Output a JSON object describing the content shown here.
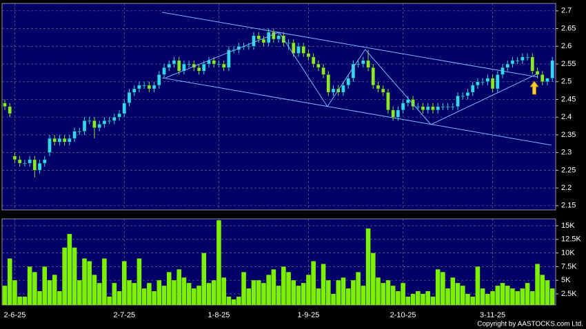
{
  "chart_data": {
    "type": "candlestick",
    "credit": "Copyright by AASTOCKS.com Ltd.",
    "categories": [
      null,
      null,
      "2-6-25",
      null,
      null,
      null,
      null,
      null,
      null,
      null,
      null,
      null,
      null,
      null,
      null,
      null,
      null,
      null,
      null,
      null,
      null,
      null,
      null,
      null,
      "2-7-25",
      null,
      null,
      null,
      null,
      null,
      null,
      null,
      null,
      null,
      null,
      null,
      null,
      null,
      null,
      null,
      null,
      null,
      null,
      "1-8-25",
      null,
      null,
      null,
      null,
      null,
      null,
      null,
      null,
      null,
      null,
      null,
      null,
      null,
      null,
      null,
      null,
      null,
      "1-9-25",
      null,
      null,
      null,
      null,
      null,
      null,
      null,
      null,
      null,
      null,
      null,
      null,
      null,
      null,
      null,
      null,
      null,
      null,
      "2-10-25",
      null,
      null,
      null,
      null,
      null,
      null,
      null,
      null,
      null,
      null,
      null,
      null,
      null,
      null,
      null,
      null,
      null,
      "3-11-25",
      null,
      null,
      null,
      null,
      null,
      null,
      null,
      null,
      null,
      null,
      null,
      null
    ],
    "open": [
      2.44,
      2.43,
      2.29,
      2.28,
      2.27,
      2.27,
      2.28,
      2.25,
      2.27,
      2.3,
      2.34,
      2.33,
      2.34,
      2.33,
      2.34,
      2.36,
      2.36,
      2.39,
      2.39,
      2.37,
      2.38,
      2.39,
      2.39,
      2.4,
      2.41,
      2.44,
      2.47,
      2.48,
      2.49,
      2.49,
      2.48,
      2.49,
      2.52,
      2.54,
      2.55,
      2.56,
      2.53,
      2.55,
      2.55,
      2.54,
      2.53,
      2.55,
      2.56,
      2.55,
      2.55,
      2.54,
      2.59,
      2.59,
      2.6,
      2.6,
      2.6,
      2.63,
      2.62,
      2.61,
      2.64,
      2.62,
      2.63,
      2.61,
      2.61,
      2.58,
      2.6,
      2.58,
      2.57,
      2.55,
      2.54,
      2.52,
      2.47,
      2.48,
      2.47,
      2.49,
      2.51,
      2.55,
      2.55,
      2.56,
      2.54,
      2.49,
      2.48,
      2.47,
      2.42,
      2.4,
      2.42,
      2.44,
      2.45,
      2.43,
      2.43,
      2.42,
      2.43,
      2.42,
      2.43,
      2.43,
      2.43,
      2.43,
      2.46,
      2.46,
      2.47,
      2.49,
      2.5,
      2.5,
      2.51,
      2.48,
      2.52,
      2.54,
      2.55,
      2.56,
      2.56,
      2.57,
      2.57,
      2.53,
      2.52,
      2.5,
      2.51
    ],
    "high": [
      2.45,
      2.44,
      2.3,
      2.29,
      2.28,
      2.29,
      2.29,
      2.28,
      2.29,
      2.35,
      2.35,
      2.35,
      2.35,
      2.35,
      2.37,
      2.37,
      2.4,
      2.4,
      2.4,
      2.39,
      2.4,
      2.4,
      2.41,
      2.42,
      2.45,
      2.48,
      2.49,
      2.5,
      2.5,
      2.5,
      2.5,
      2.53,
      2.55,
      2.56,
      2.57,
      2.57,
      2.56,
      2.56,
      2.56,
      2.55,
      2.56,
      2.57,
      2.57,
      2.56,
      2.56,
      2.6,
      2.6,
      2.61,
      2.61,
      2.61,
      2.64,
      2.64,
      2.63,
      2.65,
      2.65,
      2.64,
      2.64,
      2.62,
      2.62,
      2.61,
      2.61,
      2.59,
      2.58,
      2.56,
      2.55,
      2.53,
      2.49,
      2.49,
      2.5,
      2.52,
      2.56,
      2.56,
      2.57,
      2.59,
      2.55,
      2.5,
      2.49,
      2.48,
      2.43,
      2.43,
      2.45,
      2.46,
      2.46,
      2.44,
      2.44,
      2.44,
      2.44,
      2.44,
      2.44,
      2.44,
      2.44,
      2.47,
      2.47,
      2.48,
      2.5,
      2.51,
      2.51,
      2.52,
      2.52,
      2.53,
      2.55,
      2.56,
      2.57,
      2.57,
      2.58,
      2.58,
      2.58,
      2.54,
      2.53,
      2.51,
      2.57
    ],
    "low": [
      2.42,
      2.4,
      2.27,
      2.26,
      2.26,
      2.26,
      2.23,
      2.24,
      2.26,
      2.29,
      2.32,
      2.32,
      2.32,
      2.32,
      2.33,
      2.35,
      2.35,
      2.38,
      2.34,
      2.36,
      2.37,
      2.38,
      2.38,
      2.39,
      2.4,
      2.43,
      2.46,
      2.47,
      2.48,
      2.47,
      2.47,
      2.48,
      2.51,
      2.53,
      2.54,
      2.52,
      2.52,
      2.54,
      2.53,
      2.52,
      2.52,
      2.54,
      2.54,
      2.54,
      2.53,
      2.53,
      2.58,
      2.58,
      2.59,
      2.59,
      2.59,
      2.61,
      2.6,
      2.6,
      2.61,
      2.61,
      2.6,
      2.59,
      2.57,
      2.57,
      2.57,
      2.56,
      2.54,
      2.53,
      2.51,
      2.46,
      2.46,
      2.46,
      2.46,
      2.48,
      2.5,
      2.54,
      2.54,
      2.53,
      2.48,
      2.47,
      2.46,
      2.41,
      2.39,
      2.39,
      2.41,
      2.43,
      2.42,
      2.42,
      2.41,
      2.41,
      2.41,
      2.41,
      2.42,
      2.42,
      2.42,
      2.42,
      2.45,
      2.45,
      2.46,
      2.48,
      2.49,
      2.49,
      2.47,
      2.47,
      2.51,
      2.53,
      2.54,
      2.55,
      2.55,
      2.56,
      2.52,
      2.51,
      2.49,
      2.49,
      2.5
    ],
    "close": [
      2.43,
      2.41,
      2.28,
      2.27,
      2.27,
      2.28,
      2.25,
      2.27,
      2.28,
      2.34,
      2.33,
      2.34,
      2.33,
      2.34,
      2.36,
      2.36,
      2.39,
      2.39,
      2.37,
      2.38,
      2.39,
      2.39,
      2.4,
      2.41,
      2.44,
      2.47,
      2.48,
      2.49,
      2.49,
      2.48,
      2.49,
      2.52,
      2.54,
      2.55,
      2.56,
      2.53,
      2.55,
      2.55,
      2.54,
      2.53,
      2.55,
      2.56,
      2.55,
      2.55,
      2.54,
      2.59,
      2.59,
      2.6,
      2.6,
      2.6,
      2.63,
      2.62,
      2.61,
      2.64,
      2.62,
      2.63,
      2.61,
      2.61,
      2.58,
      2.6,
      2.58,
      2.57,
      2.55,
      2.54,
      2.52,
      2.47,
      2.48,
      2.47,
      2.49,
      2.51,
      2.55,
      2.55,
      2.56,
      2.54,
      2.49,
      2.48,
      2.47,
      2.42,
      2.4,
      2.42,
      2.44,
      2.45,
      2.43,
      2.43,
      2.42,
      2.43,
      2.42,
      2.43,
      2.43,
      2.43,
      2.43,
      2.46,
      2.46,
      2.47,
      2.49,
      2.5,
      2.5,
      2.51,
      2.48,
      2.52,
      2.54,
      2.55,
      2.56,
      2.56,
      2.57,
      2.57,
      2.53,
      2.52,
      2.5,
      2.51,
      2.56
    ],
    "up_color": "#33d6f5",
    "down_color": "#8ee62a",
    "ylim": [
      2.138,
      2.721
    ],
    "yticks": [
      2.15,
      2.2,
      2.25,
      2.3,
      2.35,
      2.4,
      2.45,
      2.5,
      2.55,
      2.6,
      2.65,
      2.7
    ],
    "trendlines": [
      {
        "x": [
          31.6,
          107.1
        ],
        "y": [
          2.696,
          2.513
        ]
      },
      {
        "x": [
          31.6,
          109.8
        ],
        "y": [
          2.511,
          2.321
        ]
      },
      {
        "x": [
          32.3,
          55.1,
          64.8,
          72.4,
          85.6,
          107.1
        ],
        "y": [
          2.511,
          2.64,
          2.43,
          2.591,
          2.379,
          2.523
        ]
      }
    ],
    "trendline_color": "#7fb8ff",
    "volume": [
      4000,
      9000,
      5000,
      2000,
      2000,
      7500,
      6500,
      3000,
      7500,
      5000,
      6000,
      3000,
      11000,
      13500,
      11000,
      5000,
      9000,
      8500,
      6000,
      4500,
      9000,
      2000,
      4500,
      3000,
      8500,
      5000,
      4500,
      9000,
      3500,
      4500,
      3000,
      5000,
      4000,
      6500,
      5000,
      7000,
      5500,
      4500,
      3500,
      4000,
      10000,
      4500,
      5000,
      16000,
      5500,
      2000,
      1500,
      2000,
      6500,
      3500,
      5000,
      5000,
      4500,
      6000,
      7000,
      4000,
      7500,
      6500,
      5000,
      4000,
      4500,
      6000,
      8500,
      3500,
      8000,
      5000,
      2500,
      5000,
      5500,
      3500,
      5000,
      6500,
      4000,
      14500,
      10000,
      5500,
      4500,
      5000,
      4000,
      3000,
      4500,
      2000,
      2500,
      3000,
      2500,
      3000,
      2000,
      7000,
      6500,
      3500,
      5500,
      4500,
      4000,
      2500,
      2000,
      7500,
      3500,
      2500,
      3000,
      4000,
      4500,
      4000,
      3500,
      3000,
      3500,
      4500,
      3000,
      8000,
      6000,
      5000,
      3500
    ],
    "volume_color": "#7cf000",
    "vlim": [
      480,
      16260
    ],
    "vticks": [
      {
        "value": 2500,
        "label": "2.5K"
      },
      {
        "value": 5000,
        "label": "5K"
      },
      {
        "value": 7500,
        "label": "7.5K"
      },
      {
        "value": 10000,
        "label": "10K"
      },
      {
        "value": 12500,
        "label": "12.5K"
      },
      {
        "value": 15000,
        "label": "15K"
      }
    ],
    "grid": true
  }
}
